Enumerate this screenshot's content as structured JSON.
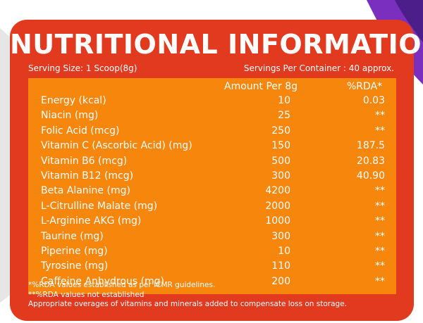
{
  "title": "NUTRITIONAL INFORMATION",
  "serving_size": "Serving Size: 1 Scoop(8g)",
  "servings_per_container": "Servings Per Container : 40 approx.",
  "table": {
    "headers": {
      "amount": "Amount Per 8g",
      "rda": "%RDA*"
    },
    "rows": [
      {
        "name": "Energy (kcal)",
        "amount": "10",
        "rda": "0.03"
      },
      {
        "name": "Niacin (mg)",
        "amount": "25",
        "rda": "**"
      },
      {
        "name": "Folic Acid (mcg)",
        "amount": "250",
        "rda": "**"
      },
      {
        "name": "Vitamin C (Ascorbic Acid) (mg)",
        "amount": "150",
        "rda": "187.5"
      },
      {
        "name": "Vitamin B6 (mcg)",
        "amount": "500",
        "rda": "20.83"
      },
      {
        "name": "Vitamin B12 (mcg)",
        "amount": "300",
        "rda": "40.90"
      },
      {
        "name": "Beta Alanine (mg)",
        "amount": "4200",
        "rda": "**"
      },
      {
        "name": "L-Citrulline Malate (mg)",
        "amount": "2000",
        "rda": "**"
      },
      {
        "name": "L-Arginine AKG (mg)",
        "amount": "1000",
        "rda": "**"
      },
      {
        "name": "Taurine (mg)",
        "amount": "300",
        "rda": "**"
      },
      {
        "name": "Piperine (mg)",
        "amount": "10",
        "rda": "**"
      },
      {
        "name": "Tyrosine (mg)",
        "amount": "110",
        "rda": "**"
      },
      {
        "name": "Caffeine Anhydrous (mg)",
        "amount": "200",
        "rda": "**"
      }
    ]
  },
  "footnotes": [
    "*%RDA values established as per ICMR guidelines.",
    "**%RDA values not established",
    "Appropriate overages of vitamins and minerals added to compensate loss on storage."
  ],
  "colors": {
    "panel": "#e23a1f",
    "table": "#f7860d",
    "accent_swoosh": "#6a2aa8"
  }
}
